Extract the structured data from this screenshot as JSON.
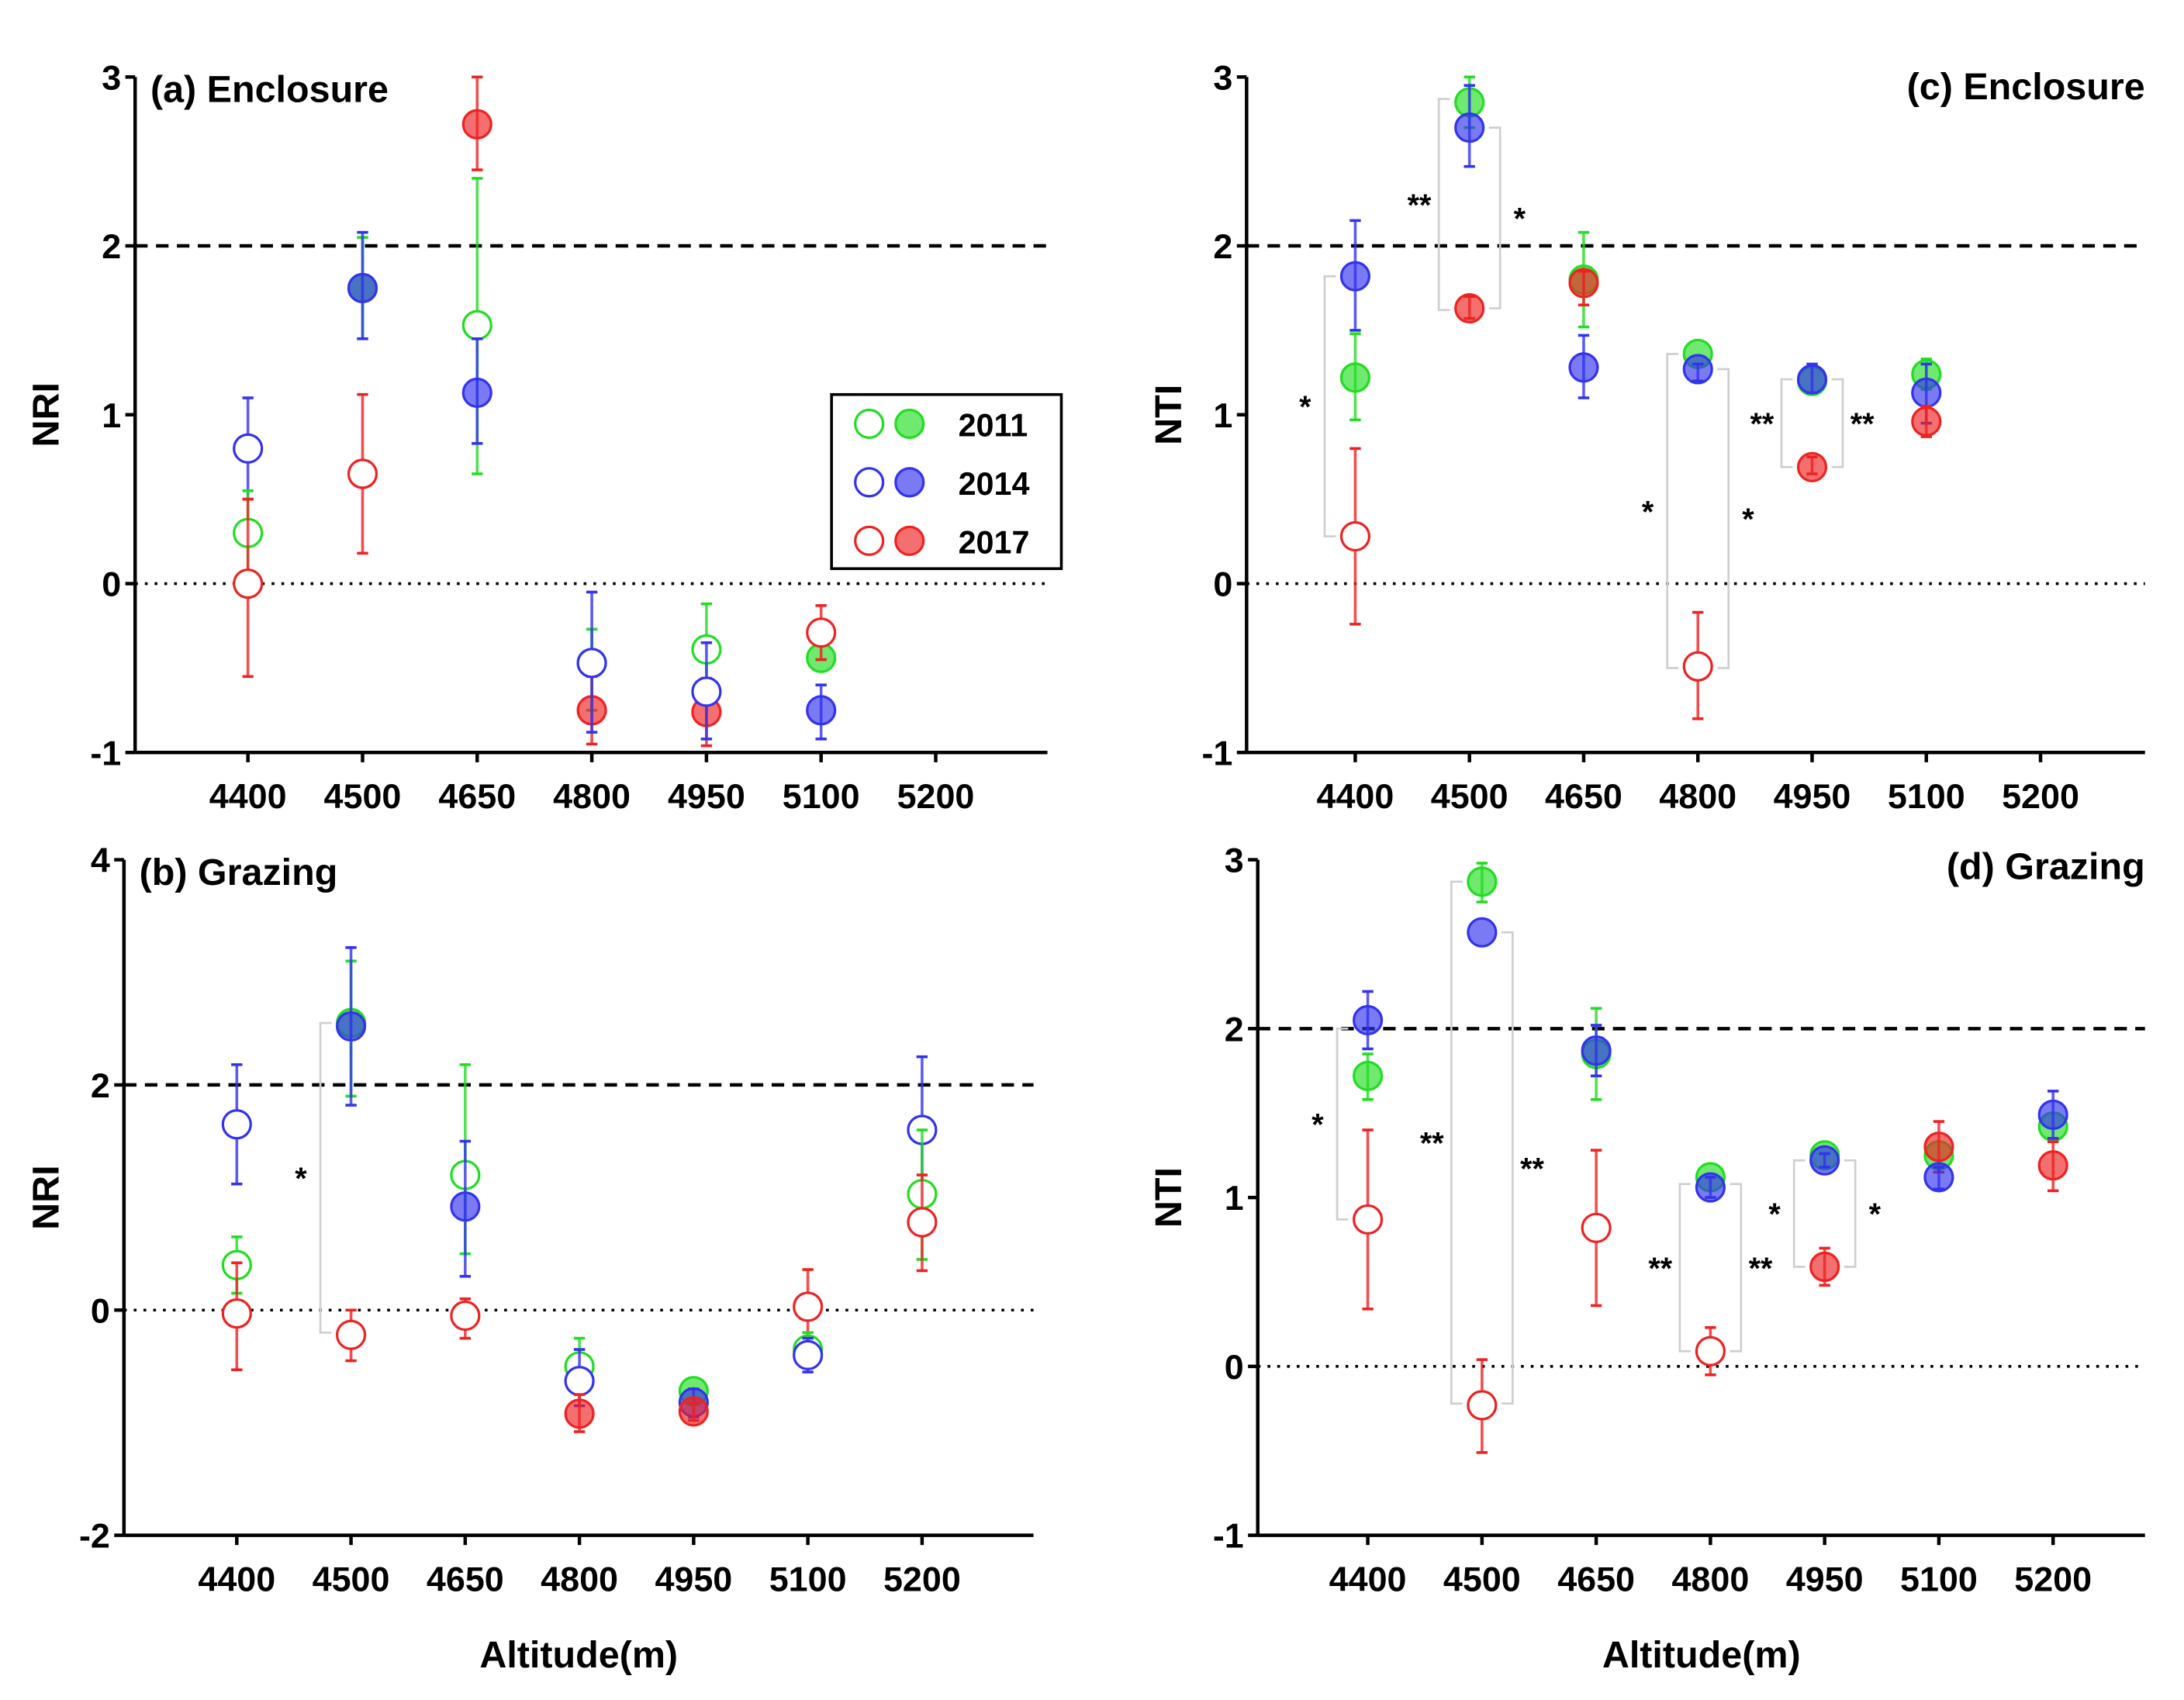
{
  "colors": {
    "2011": "#22dd22",
    "2014": "#3333ee",
    "2017": "#ee2222"
  },
  "legend": {
    "entries": [
      "2011",
      "2014",
      "2017"
    ]
  },
  "chart_data": [
    {
      "type": "scatter",
      "id": "a",
      "title": "(a) Enclosure",
      "ylabel": "NRI",
      "xlabel": "",
      "categories": [
        "4400",
        "4500",
        "4650",
        "4800",
        "4950",
        "5100",
        "5200"
      ],
      "ylim": [
        -1,
        3
      ],
      "yticks": [
        "-1",
        "0",
        "1",
        "2",
        "3"
      ],
      "yticks_values": [
        -1,
        0,
        1,
        2,
        3
      ],
      "reference_lines": {
        "dashed": 2,
        "dotted": 0
      },
      "points_format": [
        "category_index",
        "year",
        "filled",
        "mean",
        "lower",
        "upper"
      ],
      "points": [
        [
          0,
          "2014",
          0,
          0.8,
          0.5,
          1.1
        ],
        [
          0,
          "2011",
          0,
          0.3,
          0.05,
          0.55
        ],
        [
          0,
          "2017",
          0,
          0,
          -0.55,
          0.5
        ],
        [
          1,
          "2011",
          1,
          1.75,
          1.45,
          2.05
        ],
        [
          1,
          "2014",
          1,
          1.75,
          1.45,
          2.08
        ],
        [
          1,
          "2017",
          0,
          0.65,
          0.18,
          1.12
        ],
        [
          2,
          "2017",
          1,
          2.72,
          2.45,
          3.0
        ],
        [
          2,
          "2011",
          0,
          1.53,
          0.65,
          2.4
        ],
        [
          2,
          "2014",
          1,
          1.13,
          0.83,
          1.45
        ],
        [
          3,
          "2011",
          1,
          -0.47,
          -0.75,
          -0.27
        ],
        [
          3,
          "2017",
          1,
          -0.75,
          -0.95,
          -0.55
        ],
        [
          3,
          "2014",
          0,
          -0.47,
          -0.88,
          -0.05
        ],
        [
          4,
          "2011",
          0,
          -0.39,
          -0.6,
          -0.12
        ],
        [
          4,
          "2017",
          1,
          -0.76,
          -0.96,
          -0.56
        ],
        [
          4,
          "2014",
          0,
          -0.64,
          -0.92,
          -0.35
        ],
        [
          5,
          "2011",
          1,
          -0.44,
          -0.44,
          -0.44
        ],
        [
          5,
          "2017",
          0,
          -0.29,
          -0.45,
          -0.13
        ],
        [
          5,
          "2014",
          1,
          -0.75,
          -0.92,
          -0.6
        ]
      ],
      "brackets": [],
      "legend_position": "center-right"
    },
    {
      "type": "scatter",
      "id": "b",
      "title": "(b) Grazing",
      "ylabel": "NRI",
      "xlabel": "Altitude(m)",
      "categories": [
        "4400",
        "4500",
        "4650",
        "4800",
        "4950",
        "5100",
        "5200"
      ],
      "ylim": [
        -2,
        4
      ],
      "yticks": [
        "-2",
        "0",
        "2",
        "4"
      ],
      "yticks_values": [
        -2,
        0,
        2,
        4
      ],
      "reference_lines": {
        "dashed": 2,
        "dotted": 0
      },
      "points": [
        [
          0,
          "2014",
          0,
          1.65,
          1.12,
          2.18
        ],
        [
          0,
          "2011",
          0,
          0.4,
          0.15,
          0.65
        ],
        [
          0,
          "2017",
          0,
          -0.03,
          -0.53,
          0.42
        ],
        [
          1,
          "2011",
          1,
          2.55,
          1.9,
          3.1
        ],
        [
          1,
          "2014",
          1,
          2.52,
          1.82,
          3.22
        ],
        [
          1,
          "2017",
          0,
          -0.22,
          -0.45,
          0
        ],
        [
          2,
          "2011",
          0,
          1.2,
          0.5,
          2.18
        ],
        [
          2,
          "2014",
          1,
          0.92,
          0.3,
          1.5
        ],
        [
          2,
          "2017",
          0,
          -0.05,
          -0.25,
          0.1
        ],
        [
          3,
          "2011",
          0,
          -0.5,
          -0.75,
          -0.25
        ],
        [
          3,
          "2014",
          0,
          -0.63,
          -0.85,
          -0.35
        ],
        [
          3,
          "2017",
          1,
          -0.92,
          -1.08,
          -0.75
        ],
        [
          4,
          "2011",
          1,
          -0.72,
          -0.72,
          -0.72
        ],
        [
          4,
          "2014",
          1,
          -0.82,
          -0.95,
          -0.7
        ],
        [
          4,
          "2017",
          1,
          -0.9,
          -0.98,
          -0.82
        ],
        [
          5,
          "2017",
          0,
          0.03,
          -0.3,
          0.36
        ],
        [
          5,
          "2011",
          0,
          -0.35,
          -0.5,
          -0.2
        ],
        [
          5,
          "2014",
          0,
          -0.4,
          -0.55,
          -0.25
        ],
        [
          6,
          "2014",
          0,
          1.6,
          0.95,
          2.25
        ],
        [
          6,
          "2011",
          0,
          1.03,
          0.45,
          1.6
        ],
        [
          6,
          "2017",
          0,
          0.78,
          0.35,
          1.2
        ]
      ],
      "brackets": [
        [
          1,
          2.55,
          -0.2,
          "left",
          "*"
        ]
      ]
    },
    {
      "type": "scatter",
      "id": "c",
      "title": "(c) Enclosure",
      "ylabel": "NTI",
      "xlabel": "",
      "categories": [
        "4400",
        "4500",
        "4650",
        "4800",
        "4950",
        "5100",
        "5200"
      ],
      "ylim": [
        -1,
        3
      ],
      "yticks": [
        "-1",
        "0",
        "1",
        "2",
        "3"
      ],
      "yticks_values": [
        -1,
        0,
        1,
        2,
        3
      ],
      "reference_lines": {
        "dashed": 2,
        "dotted": 0
      },
      "points": [
        [
          0,
          "2014",
          1,
          1.82,
          1.5,
          2.15
        ],
        [
          0,
          "2011",
          1,
          1.22,
          0.97,
          1.48
        ],
        [
          0,
          "2017",
          0,
          0.28,
          -0.24,
          0.8
        ],
        [
          1,
          "2011",
          1,
          2.85,
          2.7,
          3.0
        ],
        [
          1,
          "2014",
          1,
          2.7,
          2.47,
          2.95
        ],
        [
          1,
          "2017",
          1,
          1.63,
          1.57,
          1.7
        ],
        [
          2,
          "2011",
          1,
          1.8,
          1.52,
          2.08
        ],
        [
          2,
          "2017",
          1,
          1.78,
          1.65,
          1.85
        ],
        [
          2,
          "2014",
          1,
          1.28,
          1.1,
          1.47
        ],
        [
          3,
          "2011",
          1,
          1.36,
          1.36,
          1.36
        ],
        [
          3,
          "2014",
          1,
          1.27,
          1.2,
          1.3
        ],
        [
          3,
          "2017",
          0,
          -0.49,
          -0.8,
          -0.17
        ],
        [
          4,
          "2011",
          1,
          1.2,
          1.2,
          1.2
        ],
        [
          4,
          "2014",
          1,
          1.21,
          1.13,
          1.3
        ],
        [
          4,
          "2017",
          1,
          0.69,
          0.65,
          0.75
        ],
        [
          5,
          "2011",
          1,
          1.24,
          1.15,
          1.33
        ],
        [
          5,
          "2014",
          1,
          1.13,
          0.95,
          1.3
        ],
        [
          5,
          "2017",
          1,
          0.96,
          0.87,
          1.05
        ]
      ],
      "brackets": [
        [
          0,
          1.82,
          0.28,
          "left",
          "*"
        ],
        [
          1,
          2.87,
          1.62,
          "left",
          "**"
        ],
        [
          1,
          2.7,
          1.63,
          "right",
          "*"
        ],
        [
          3,
          1.36,
          -0.5,
          "left",
          "*"
        ],
        [
          3,
          1.27,
          -0.5,
          "right",
          "*"
        ],
        [
          4,
          1.21,
          0.69,
          "left",
          "**"
        ],
        [
          4,
          1.21,
          0.69,
          "right",
          "**"
        ]
      ]
    },
    {
      "type": "scatter",
      "id": "d",
      "title": "(d) Grazing",
      "ylabel": "NTI",
      "xlabel": "Altitude(m)",
      "categories": [
        "4400",
        "4500",
        "4650",
        "4800",
        "4950",
        "5100",
        "5200"
      ],
      "ylim": [
        -1,
        3
      ],
      "yticks": [
        "-1",
        "0",
        "1",
        "2",
        "3"
      ],
      "yticks_values": [
        -1,
        0,
        1,
        2,
        3
      ],
      "reference_lines": {
        "dashed": 2,
        "dotted": 0
      },
      "points": [
        [
          0,
          "2014",
          1,
          2.05,
          1.88,
          2.22
        ],
        [
          0,
          "2011",
          1,
          1.72,
          1.58,
          1.85
        ],
        [
          0,
          "2017",
          0,
          0.87,
          0.34,
          1.4
        ],
        [
          1,
          "2011",
          1,
          2.87,
          2.75,
          2.98
        ],
        [
          1,
          "2014",
          1,
          2.57,
          2.57,
          2.57
        ],
        [
          1,
          "2017",
          0,
          -0.23,
          -0.51,
          0.04
        ],
        [
          2,
          "2011",
          1,
          1.85,
          1.58,
          2.12
        ],
        [
          2,
          "2014",
          1,
          1.87,
          1.72,
          2.02
        ],
        [
          2,
          "2017",
          0,
          0.82,
          0.36,
          1.28
        ],
        [
          3,
          "2011",
          1,
          1.12,
          1.12,
          1.12
        ],
        [
          3,
          "2014",
          1,
          1.06,
          1.0,
          1.12
        ],
        [
          3,
          "2017",
          0,
          0.09,
          -0.05,
          0.23
        ],
        [
          4,
          "2011",
          1,
          1.25,
          1.25,
          1.25
        ],
        [
          4,
          "2014",
          1,
          1.22,
          1.18,
          1.26
        ],
        [
          4,
          "2017",
          1,
          0.59,
          0.48,
          0.7
        ],
        [
          5,
          "2011",
          1,
          1.25,
          1.25,
          1.25
        ],
        [
          5,
          "2017",
          1,
          1.3,
          1.15,
          1.45
        ],
        [
          5,
          "2014",
          1,
          1.12,
          1.05,
          1.18
        ],
        [
          6,
          "2011",
          1,
          1.42,
          1.42,
          1.42
        ],
        [
          6,
          "2014",
          1,
          1.49,
          1.35,
          1.63
        ],
        [
          6,
          "2017",
          1,
          1.19,
          1.04,
          1.33
        ]
      ],
      "brackets": [
        [
          0,
          2.0,
          0.87,
          "left",
          "*"
        ],
        [
          1,
          2.87,
          -0.22,
          "left",
          "**"
        ],
        [
          1,
          2.57,
          -0.22,
          "right",
          "**"
        ],
        [
          3,
          1.08,
          0.09,
          "left",
          "**"
        ],
        [
          3,
          1.08,
          0.09,
          "right",
          "**"
        ],
        [
          4,
          1.22,
          0.59,
          "left",
          "*"
        ],
        [
          4,
          1.22,
          0.59,
          "right",
          "*"
        ]
      ]
    }
  ]
}
